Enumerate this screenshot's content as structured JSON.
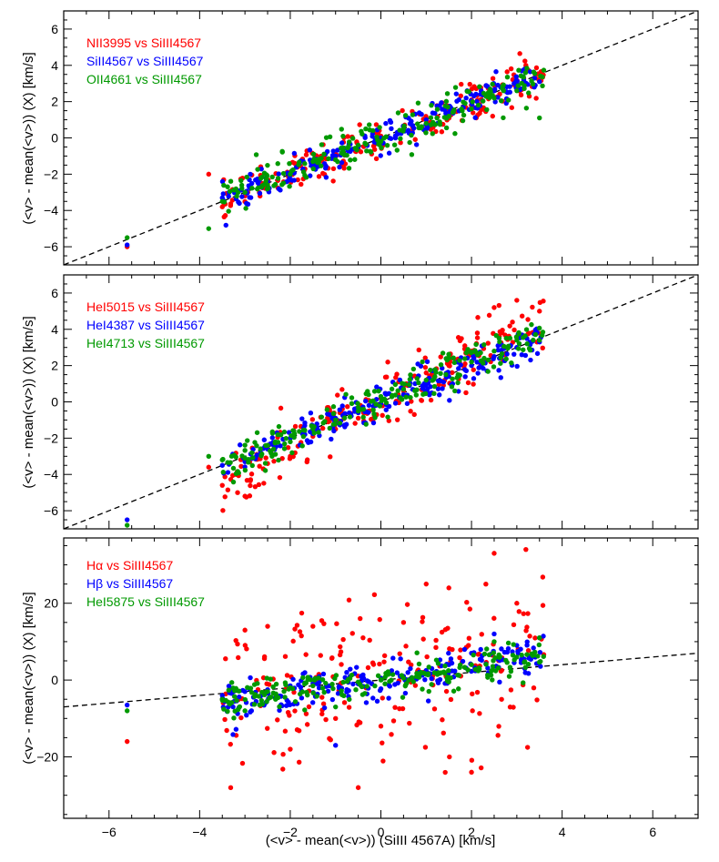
{
  "chart_data": [
    {
      "type": "scatter",
      "xlabel": "(<v> - mean(<v>)) (SiIII 4567A) [km/s]",
      "ylabel": "(<v> - mean(<v>)) (X) [km/s]",
      "xlim": [
        -7,
        7
      ],
      "ylim": [
        -7,
        7
      ],
      "xticks": [
        -6,
        -4,
        -2,
        0,
        2,
        4,
        6
      ],
      "yticks": [
        -6,
        -4,
        -2,
        0,
        2,
        4,
        6
      ],
      "reference_line": {
        "style": "dashed",
        "slope": 1,
        "intercept": 0
      },
      "series": [
        {
          "name": "NII3995 vs SiIII4567",
          "color": "#ff0000",
          "slope": 1.0,
          "spread": 0.55,
          "points": [
            [
              -5.6,
              -6.0
            ],
            [
              -3.8,
              -2.0
            ],
            [
              -3.5,
              -3.8
            ],
            [
              -3.0,
              -3.2
            ],
            [
              -2.5,
              -2.5
            ],
            [
              -2.0,
              -1.9
            ],
            [
              -1.5,
              -1.6
            ],
            [
              -1.0,
              -0.9
            ],
            [
              -0.5,
              -0.6
            ],
            [
              0.0,
              0.1
            ],
            [
              0.5,
              0.4
            ],
            [
              1.0,
              1.1
            ],
            [
              1.5,
              1.5
            ],
            [
              2.0,
              2.1
            ],
            [
              2.5,
              2.6
            ],
            [
              3.0,
              3.1
            ],
            [
              3.2,
              4.0
            ]
          ]
        },
        {
          "name": "SiII4567 vs SiIII4567",
          "color": "#0000ff",
          "slope": 1.0,
          "spread": 0.4,
          "points": [
            [
              -5.6,
              -5.9
            ],
            [
              -3.5,
              -3.3
            ],
            [
              -3.0,
              -3.0
            ],
            [
              -2.5,
              -2.4
            ],
            [
              -2.0,
              -2.0
            ],
            [
              -1.5,
              -1.4
            ],
            [
              -1.0,
              -1.0
            ],
            [
              -0.5,
              -0.5
            ],
            [
              0.0,
              0.0
            ],
            [
              0.5,
              0.6
            ],
            [
              1.0,
              1.0
            ],
            [
              1.5,
              1.4
            ],
            [
              2.0,
              2.0
            ],
            [
              2.5,
              2.6
            ],
            [
              3.0,
              3.0
            ],
            [
              3.5,
              3.1
            ]
          ]
        },
        {
          "name": "OII4661 vs SiIII4567",
          "color": "#009900",
          "slope": 0.95,
          "spread": 0.55,
          "points": [
            [
              -5.6,
              -5.5
            ],
            [
              -3.8,
              -5.0
            ],
            [
              -3.5,
              -3.5
            ],
            [
              -3.0,
              -3.0
            ],
            [
              -2.5,
              -2.6
            ],
            [
              -2.0,
              -2.0
            ],
            [
              -1.5,
              -1.3
            ],
            [
              -1.0,
              -1.2
            ],
            [
              -0.5,
              -0.4
            ],
            [
              0.0,
              -0.2
            ],
            [
              0.5,
              0.5
            ],
            [
              1.0,
              0.8
            ],
            [
              1.5,
              1.2
            ],
            [
              2.0,
              1.6
            ],
            [
              2.5,
              2.2
            ],
            [
              3.0,
              2.6
            ],
            [
              3.5,
              1.1
            ]
          ]
        }
      ]
    },
    {
      "type": "scatter",
      "xlabel": "",
      "ylabel": "(<v> - mean(<v>)) (X) [km/s]",
      "xlim": [
        -7,
        7
      ],
      "ylim": [
        -7,
        7
      ],
      "xticks": [
        -6,
        -4,
        -2,
        0,
        2,
        4,
        6
      ],
      "yticks": [
        -6,
        -4,
        -2,
        0,
        2,
        4,
        6
      ],
      "reference_line": {
        "style": "dashed",
        "slope": 1,
        "intercept": 0
      },
      "series": [
        {
          "name": "HeI5015 vs SiIII4567",
          "color": "#ff0000",
          "slope": 1.3,
          "spread": 0.8,
          "points": [
            [
              -3.8,
              -3.6
            ],
            [
              -3.5,
              -4.6
            ],
            [
              -3.0,
              -5.2
            ],
            [
              -2.5,
              -3.4
            ],
            [
              -2.0,
              -3.0
            ],
            [
              -1.5,
              -1.9
            ],
            [
              -1.0,
              -1.5
            ],
            [
              -0.5,
              -0.9
            ],
            [
              0.0,
              0.2
            ],
            [
              0.5,
              0.6
            ],
            [
              1.0,
              1.6
            ],
            [
              1.5,
              2.0
            ],
            [
              2.0,
              2.8
            ],
            [
              2.5,
              5.2
            ],
            [
              3.0,
              5.6
            ],
            [
              3.5,
              5.0
            ]
          ]
        },
        {
          "name": "HeI4387 vs SiIII4567",
          "color": "#0000ff",
          "slope": 1.0,
          "spread": 0.5,
          "points": [
            [
              -5.6,
              -6.5
            ],
            [
              -3.5,
              -3.5
            ],
            [
              -3.0,
              -3.3
            ],
            [
              -2.5,
              -2.6
            ],
            [
              -2.0,
              -2.0
            ],
            [
              -1.5,
              -1.5
            ],
            [
              -1.0,
              -0.9
            ],
            [
              -0.5,
              -0.6
            ],
            [
              0.0,
              -0.1
            ],
            [
              0.5,
              0.4
            ],
            [
              1.0,
              1.1
            ],
            [
              1.5,
              1.4
            ],
            [
              2.0,
              2.0
            ],
            [
              2.5,
              2.5
            ],
            [
              3.0,
              3.0
            ],
            [
              3.5,
              3.3
            ]
          ]
        },
        {
          "name": "HeI4713 vs SiIII4567",
          "color": "#009900",
          "slope": 1.05,
          "spread": 0.55,
          "points": [
            [
              -5.6,
              -6.8
            ],
            [
              -3.8,
              -3.0
            ],
            [
              -3.5,
              -3.2
            ],
            [
              -3.0,
              -3.1
            ],
            [
              -2.5,
              -2.4
            ],
            [
              -2.0,
              -2.2
            ],
            [
              -1.5,
              -1.5
            ],
            [
              -1.0,
              -1.0
            ],
            [
              -0.5,
              -0.3
            ],
            [
              0.0,
              0.3
            ],
            [
              0.5,
              0.7
            ],
            [
              1.0,
              1.2
            ],
            [
              1.5,
              2.4
            ],
            [
              2.0,
              2.2
            ],
            [
              2.5,
              2.8
            ],
            [
              3.0,
              3.4
            ],
            [
              3.5,
              3.4
            ]
          ]
        }
      ]
    },
    {
      "type": "scatter",
      "xlabel": "(<v> - mean(<v>)) (SiIII 4567A) [km/s]",
      "ylabel": "(<v> - mean(<v>)) (X) [km/s]",
      "xlim": [
        -7,
        7
      ],
      "ylim": [
        -36,
        37
      ],
      "xticks": [
        -6,
        -4,
        -2,
        0,
        2,
        4,
        6
      ],
      "yticks": [
        -20,
        0,
        20
      ],
      "reference_line": {
        "style": "dashed",
        "slope": 1,
        "intercept": 0
      },
      "series": [
        {
          "name": "Hα vs SiIII4567",
          "color": "#ff0000",
          "slope": 1.5,
          "spread": 10.0,
          "points": [
            [
              -5.6,
              -16.0
            ],
            [
              -3.5,
              -5.0
            ],
            [
              -3.0,
              13.0
            ],
            [
              -2.5,
              14.0
            ],
            [
              -2.0,
              -18.0
            ],
            [
              -1.5,
              14.0
            ],
            [
              -1.0,
              -10.0
            ],
            [
              -0.5,
              -28.0
            ],
            [
              0.0,
              -12.0
            ],
            [
              0.5,
              15.0
            ],
            [
              1.0,
              25.0
            ],
            [
              1.5,
              24.0
            ],
            [
              2.0,
              -24.0
            ],
            [
              2.5,
              33.0
            ],
            [
              3.0,
              20.0
            ],
            [
              3.2,
              34.0
            ]
          ]
        },
        {
          "name": "Hβ vs SiIII4567",
          "color": "#0000ff",
          "slope": 1.8,
          "spread": 2.5,
          "points": [
            [
              -5.6,
              -6.5
            ],
            [
              -3.5,
              -4.0
            ],
            [
              -3.0,
              -3.0
            ],
            [
              -2.5,
              -2.5
            ],
            [
              -2.0,
              -1.5
            ],
            [
              -1.5,
              -1.0
            ],
            [
              -1.0,
              -17.0
            ],
            [
              -0.5,
              -1.0
            ],
            [
              0.0,
              0.5
            ],
            [
              0.5,
              1.0
            ],
            [
              1.0,
              2.5
            ],
            [
              1.5,
              4.0
            ],
            [
              2.0,
              7.0
            ],
            [
              2.5,
              12.0
            ],
            [
              3.0,
              9.0
            ],
            [
              3.5,
              11.0
            ]
          ]
        },
        {
          "name": "HeI5875 vs SiIII4567",
          "color": "#009900",
          "slope": 1.4,
          "spread": 2.2,
          "points": [
            [
              -5.6,
              -8.0
            ],
            [
              -3.5,
              -5.0
            ],
            [
              -3.0,
              -8.0
            ],
            [
              -2.5,
              -3.0
            ],
            [
              -2.0,
              -2.0
            ],
            [
              -1.5,
              -1.5
            ],
            [
              -1.0,
              -7.0
            ],
            [
              -0.5,
              -0.5
            ],
            [
              0.0,
              0.0
            ],
            [
              0.5,
              0.5
            ],
            [
              1.0,
              1.5
            ],
            [
              1.5,
              -0.5
            ],
            [
              2.0,
              4.0
            ],
            [
              2.5,
              10.0
            ],
            [
              3.0,
              6.0
            ],
            [
              3.5,
              11.0
            ]
          ]
        }
      ]
    }
  ]
}
